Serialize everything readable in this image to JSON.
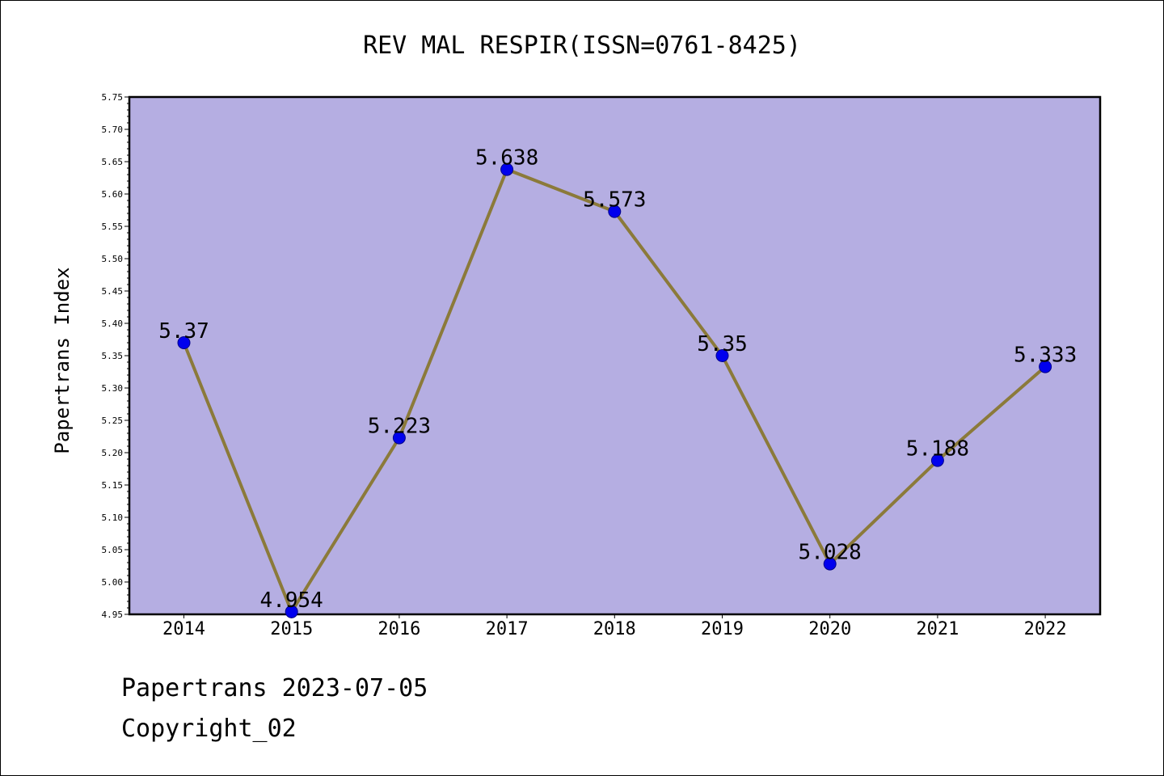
{
  "chart_data": {
    "type": "line",
    "title": "REV MAL RESPIR(ISSN=0761-8425)",
    "xlabel": "",
    "ylabel": "Papertrans Index",
    "categories": [
      "2014",
      "2015",
      "2016",
      "2017",
      "2018",
      "2019",
      "2020",
      "2021",
      "2022"
    ],
    "series": [
      {
        "values": [
          5.37,
          4.954,
          5.223,
          5.638,
          5.573,
          5.35,
          5.028,
          5.188,
          5.333
        ],
        "labels": [
          "5.37",
          "4.954",
          "5.223",
          "5.638",
          "5.573",
          "5.35",
          "5.028",
          "5.188",
          "5.333"
        ]
      }
    ],
    "ylim": [
      4.95,
      5.75
    ],
    "yticks": [
      "4.95",
      "5.00",
      "5.05",
      "5.10",
      "5.15",
      "5.20",
      "5.25",
      "5.30",
      "5.35",
      "5.40",
      "5.45",
      "5.50",
      "5.55",
      "5.60",
      "5.65",
      "5.70",
      "5.75"
    ],
    "grid": false,
    "legend": "none",
    "colors": {
      "plot_background": "#b5aee2",
      "line": "#8b7a3a",
      "marker": "#0000ee"
    }
  },
  "footer": {
    "line1": "Papertrans 2023-07-05",
    "line2": "Copyright_02"
  }
}
